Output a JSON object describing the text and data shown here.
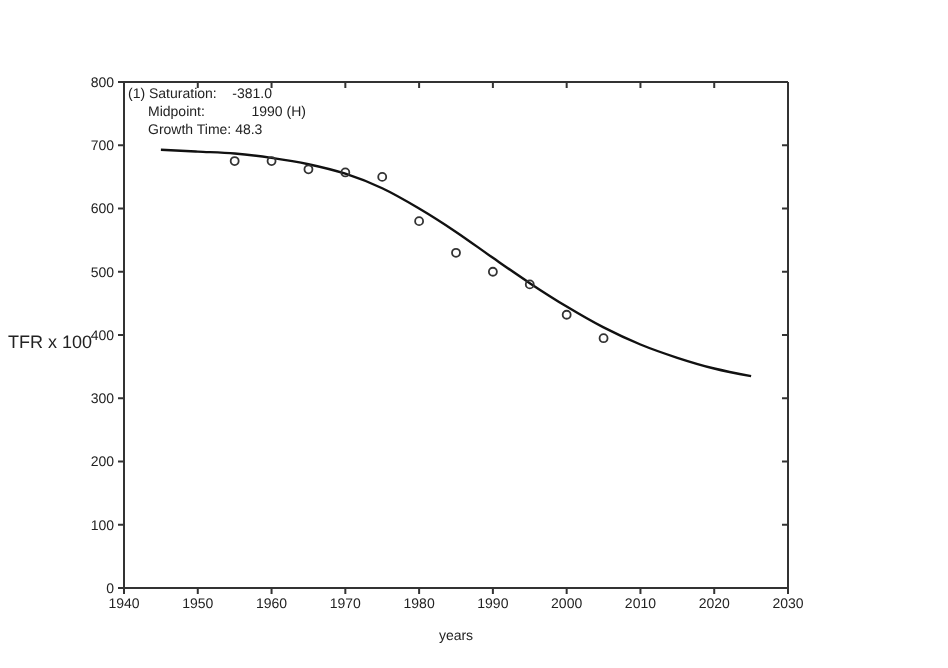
{
  "chart_data": {
    "type": "scatter",
    "xlabel": "years",
    "ylabel": "TFR x 100",
    "annotations": [
      "(1) Saturation:    -381.0",
      "Midpoint:            1990 (H)",
      "Growth Time: 48.3"
    ],
    "xlim": [
      1940,
      2030
    ],
    "xticks": [
      1940,
      1950,
      1960,
      1970,
      1980,
      1990,
      2000,
      2010,
      2020,
      2030
    ],
    "ylim": [
      0,
      800
    ],
    "yticks": [
      0,
      100,
      200,
      300,
      400,
      500,
      600,
      700,
      800
    ],
    "legend": false,
    "series": [
      {
        "color": "#333333",
        "marker": "circle",
        "x": [
          1955,
          1960,
          1965,
          1970,
          1975,
          1980,
          1985,
          1990,
          1995,
          2000,
          2005
        ],
        "values": [
          675,
          675,
          662,
          657,
          650,
          580,
          530,
          500,
          480,
          432,
          395
        ]
      },
      {
        "type": "line",
        "color": "#111111",
        "marker": "none",
        "line_style": "solid",
        "x": [
          1945,
          1950,
          1955,
          1960,
          1965,
          1970,
          1975,
          1980,
          1985,
          1990,
          1995,
          2000,
          2005,
          2010,
          2015,
          2020,
          2025
        ],
        "values": [
          693,
          690,
          687,
          680,
          670,
          655,
          632,
          600,
          563,
          522,
          482,
          445,
          412,
          385,
          364,
          347,
          335
        ]
      }
    ]
  }
}
